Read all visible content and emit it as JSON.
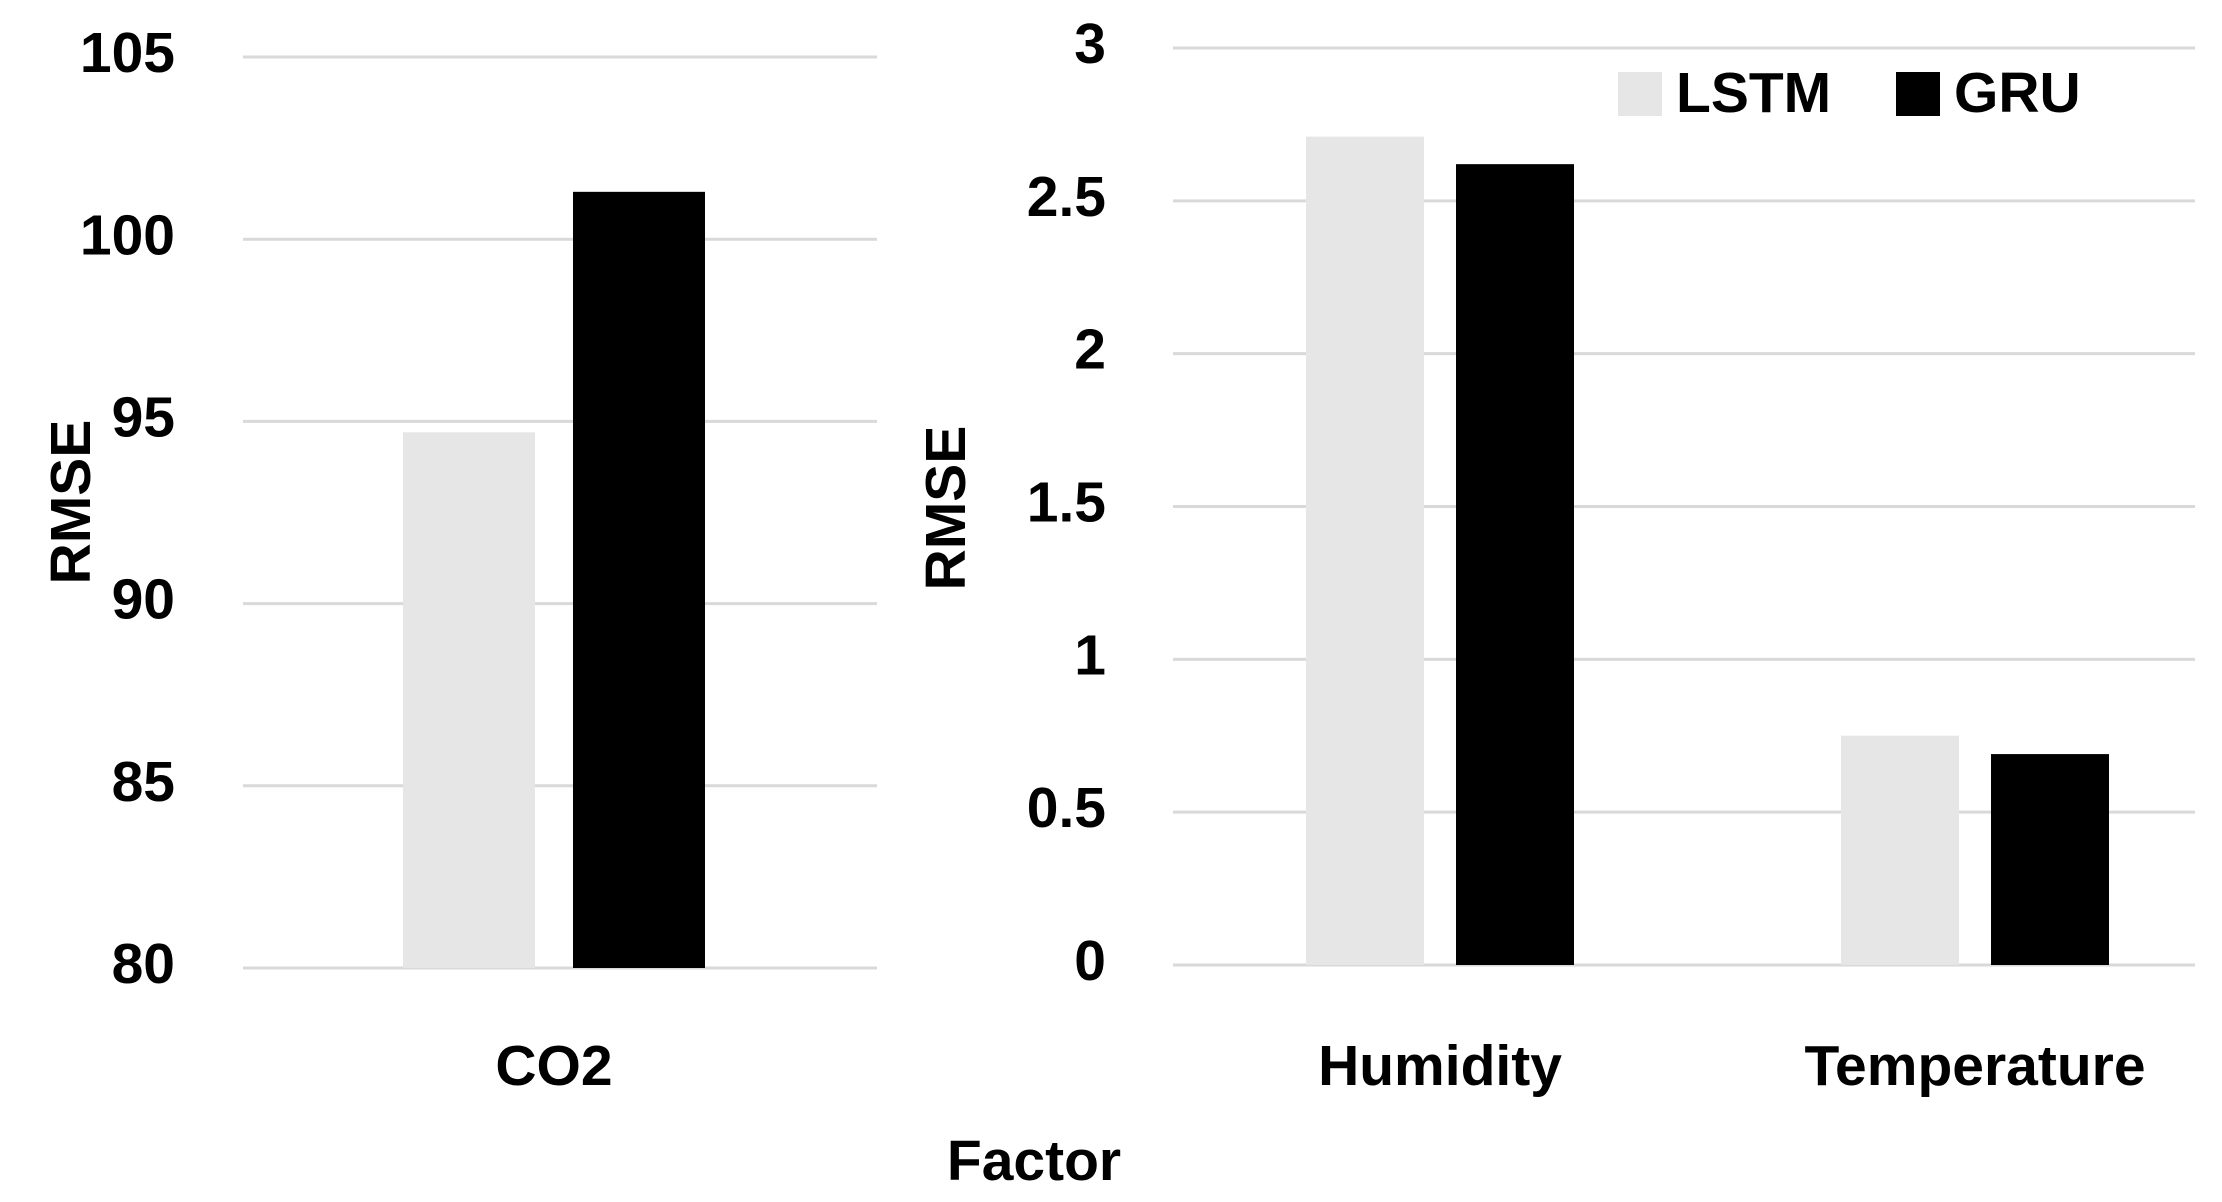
{
  "colors": {
    "lstm": "#e6e6e6",
    "gru": "#000000",
    "grid": "#d9d9d9"
  },
  "legend": {
    "placement": "top-right of right panel",
    "entries": [
      "LSTM",
      "GRU"
    ]
  },
  "shared_xlabel": "Factor",
  "chart_data": [
    {
      "type": "bar",
      "categories": [
        "CO2"
      ],
      "series": [
        {
          "name": "LSTM",
          "values": [
            94.7
          ]
        },
        {
          "name": "GRU",
          "values": [
            101.3
          ]
        }
      ],
      "title": "",
      "xlabel": "",
      "ylabel": "RMSE",
      "ylim": [
        80,
        105
      ],
      "yticks": [
        80,
        85,
        90,
        95,
        100,
        105
      ],
      "yticklabels": [
        "80",
        "85",
        "90",
        "95",
        "100",
        "105"
      ],
      "grid": true
    },
    {
      "type": "bar",
      "categories": [
        "Humidity",
        "Temperature"
      ],
      "series": [
        {
          "name": "LSTM",
          "values": [
            2.71,
            0.75
          ]
        },
        {
          "name": "GRU",
          "values": [
            2.62,
            0.69
          ]
        }
      ],
      "title": "",
      "xlabel": "",
      "ylabel": "RMSE",
      "ylim": [
        0,
        3
      ],
      "yticks": [
        0,
        0.5,
        1,
        1.5,
        2,
        2.5,
        3
      ],
      "yticklabels": [
        "0",
        "0.5",
        "1",
        "1.5",
        "2",
        "2.5",
        "3"
      ],
      "grid": true
    }
  ]
}
